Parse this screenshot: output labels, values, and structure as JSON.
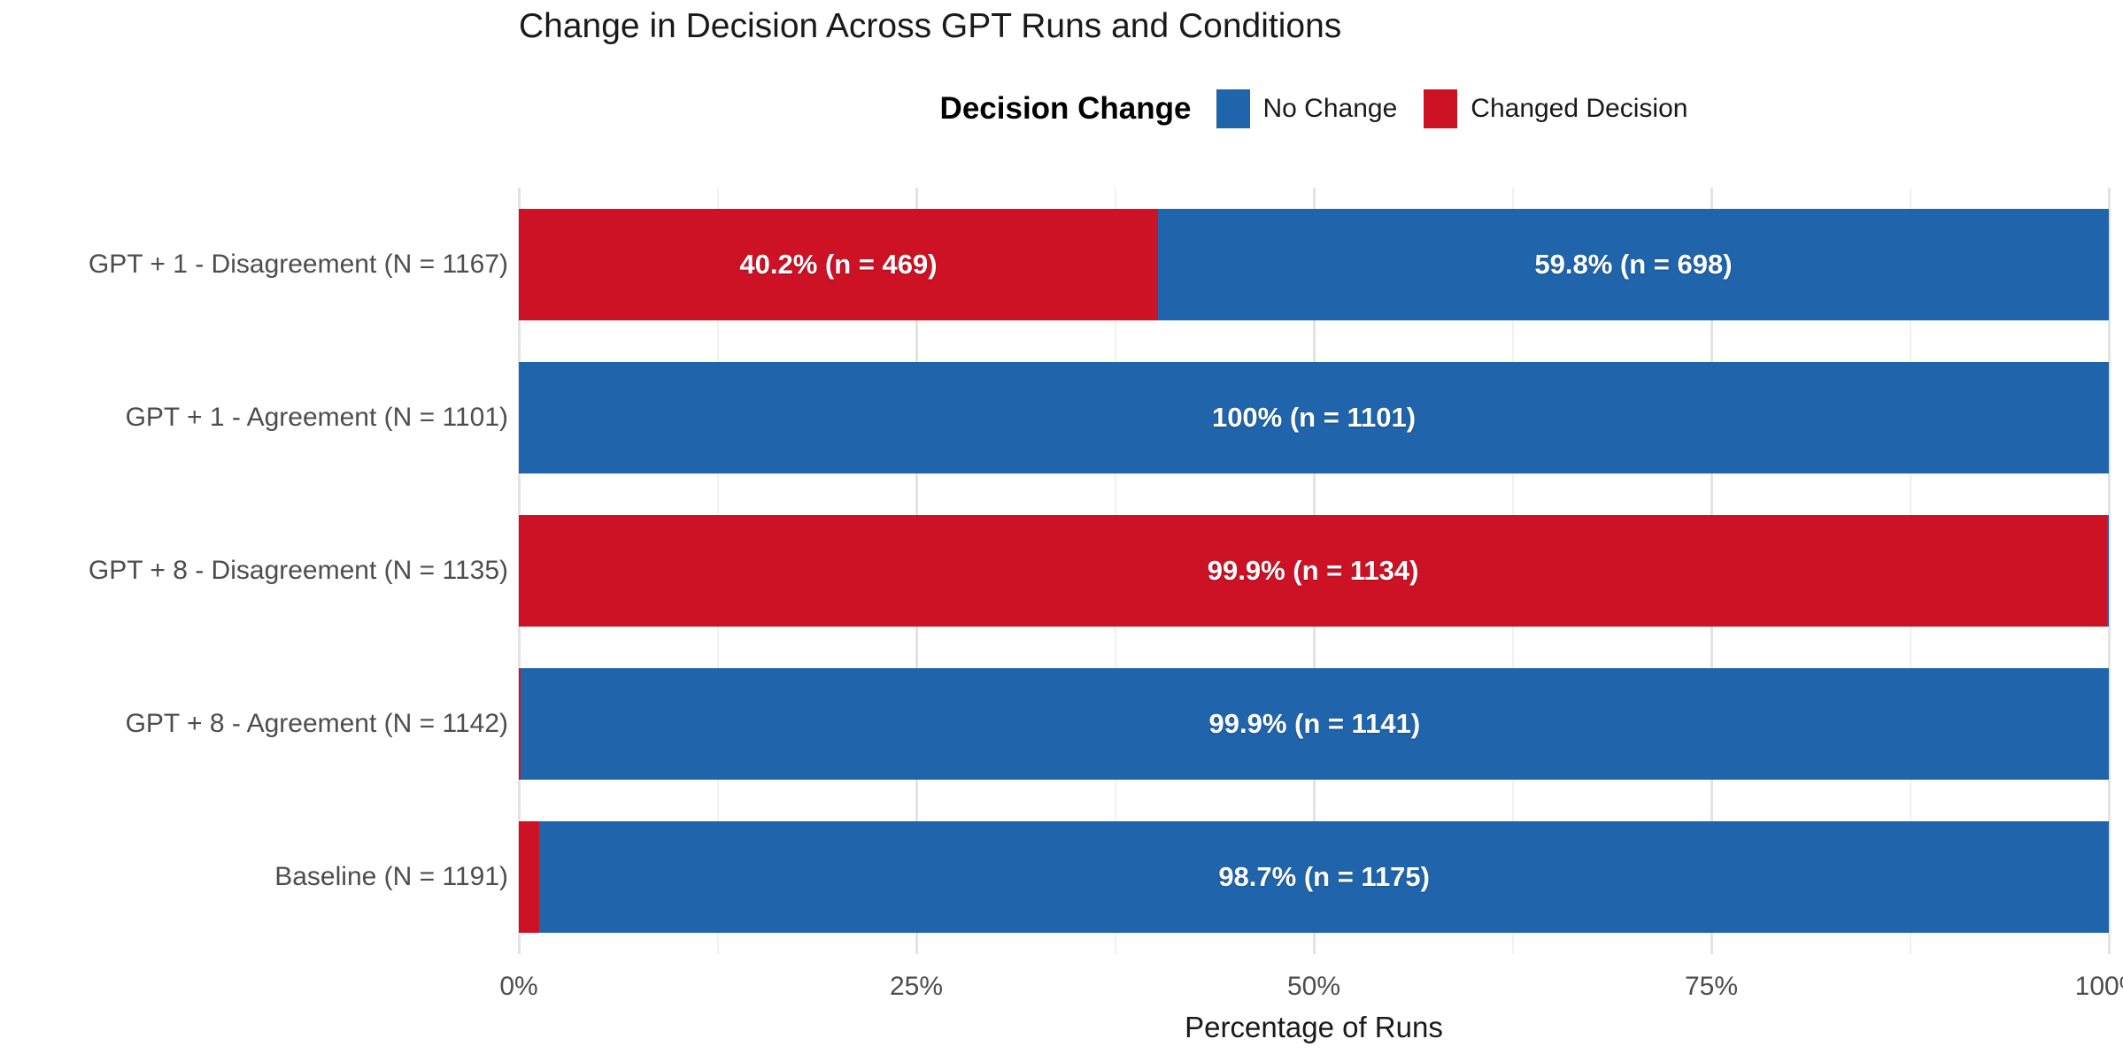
{
  "title": "Change in Decision Across GPT Runs and Conditions",
  "legend": {
    "title": "Decision Change",
    "items": [
      {
        "label": "No Change",
        "color": "#2065AC"
      },
      {
        "label": "Changed Decision",
        "color": "#CE1225"
      }
    ]
  },
  "axis": {
    "xlabel": "Percentage of Runs"
  },
  "chart_data": {
    "type": "bar",
    "orientation": "horizontal",
    "stacked": true,
    "title": "Change in Decision Across GPT Runs and Conditions",
    "xlabel": "Percentage of Runs",
    "ylabel": "",
    "xlim": [
      0,
      100
    ],
    "x_ticks": [
      {
        "value": 0,
        "label": "0%"
      },
      {
        "value": 25,
        "label": "25%"
      },
      {
        "value": 50,
        "label": "50%"
      },
      {
        "value": 75,
        "label": "75%"
      },
      {
        "value": 100,
        "label": "100%"
      }
    ],
    "minor_grid_step_pct": 12.5,
    "grid": true,
    "legend_position": "top",
    "series_names": [
      "Changed Decision",
      "No Change"
    ],
    "categories": [
      "GPT + 1 - Disagreement (N = 1167)",
      "GPT + 1 - Agreement (N = 1101)",
      "GPT + 8 - Disagreement (N = 1135)",
      "GPT + 8 - Agreement (N = 1142)",
      "Baseline (N = 1191)"
    ],
    "rows": [
      {
        "category": "GPT + 1 - Disagreement (N = 1167)",
        "segments": [
          {
            "series": "Changed Decision",
            "color": "#CE1225",
            "pct": 40.2,
            "label": "40.2% (n = 469)"
          },
          {
            "series": "No Change",
            "color": "#2065AC",
            "pct": 59.8,
            "label": "59.8% (n = 698)"
          }
        ]
      },
      {
        "category": "GPT + 1 - Agreement (N = 1101)",
        "segments": [
          {
            "series": "No Change",
            "color": "#2065AC",
            "pct": 100,
            "label": "100% (n = 1101)"
          }
        ]
      },
      {
        "category": "GPT + 8 - Disagreement (N = 1135)",
        "segments": [
          {
            "series": "Changed Decision",
            "color": "#CE1225",
            "pct": 99.9,
            "label": "99.9% (n = 1134)"
          },
          {
            "series": "No Change",
            "color": "#2065AC",
            "pct": 0.1,
            "label": ""
          }
        ]
      },
      {
        "category": "GPT + 8 - Agreement (N = 1142)",
        "segments": [
          {
            "series": "Changed Decision",
            "color": "#CE1225",
            "pct": 0.1,
            "label": ""
          },
          {
            "series": "No Change",
            "color": "#2065AC",
            "pct": 99.9,
            "label": "99.9% (n = 1141)"
          }
        ]
      },
      {
        "category": "Baseline (N = 1191)",
        "segments": [
          {
            "series": "Changed Decision",
            "color": "#CE1225",
            "pct": 1.3,
            "label": ""
          },
          {
            "series": "No Change",
            "color": "#2065AC",
            "pct": 98.7,
            "label": "98.7% (n = 1175)"
          }
        ]
      }
    ]
  }
}
